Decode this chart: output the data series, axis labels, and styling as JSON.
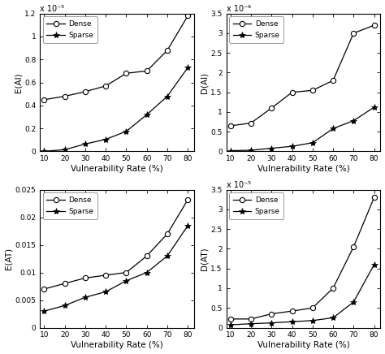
{
  "x": [
    10,
    20,
    30,
    40,
    50,
    60,
    70,
    80
  ],
  "top_left": {
    "ylabel": "E(Al)",
    "scale_label": "x 10⁻⁵",
    "scale_exp": -5,
    "ylim": [
      0,
      1.2e-05
    ],
    "yticks": [
      0,
      2e-06,
      4e-06,
      6e-06,
      8e-06,
      1e-05,
      1.2e-05
    ],
    "ytick_labels": [
      "0",
      "0.2",
      "0.4",
      "0.6",
      "0.8",
      "1",
      "1.2"
    ],
    "dense": [
      4.5e-06,
      4.8e-06,
      5.2e-06,
      5.7e-06,
      6.8e-06,
      7e-06,
      8.8e-06,
      1.18e-05
    ],
    "sparse": [
      2e-08,
      1.5e-07,
      6.5e-07,
      1.05e-06,
      1.75e-06,
      3.2e-06,
      4.8e-06,
      7.3e-06
    ]
  },
  "top_right": {
    "ylabel": "D(Al)",
    "scale_label": "x 10⁻⁶",
    "scale_exp": -6,
    "ylim": [
      0,
      3.5e-06
    ],
    "yticks": [
      0,
      5e-07,
      1e-06,
      1.5e-06,
      2e-06,
      2.5e-06,
      3e-06,
      3.5e-06
    ],
    "ytick_labels": [
      "0",
      "0.5",
      "1",
      "1.5",
      "2",
      "2.5",
      "3",
      "3.5"
    ],
    "dense": [
      6.5e-07,
      7.2e-07,
      1.1e-06,
      1.5e-06,
      1.55e-06,
      1.8e-06,
      3e-06,
      3.2e-06
    ],
    "sparse": [
      2e-08,
      3e-08,
      8e-08,
      1.3e-07,
      2.2e-07,
      5.8e-07,
      7.8e-07,
      1.12e-06
    ]
  },
  "bottom_left": {
    "ylabel": "E(AT)",
    "scale_label": null,
    "scale_exp": null,
    "ylim": [
      0,
      0.025
    ],
    "yticks": [
      0,
      0.005,
      0.01,
      0.015,
      0.02,
      0.025
    ],
    "ytick_labels": [
      "0",
      "0.005",
      "0.01",
      "0.015",
      "0.02",
      "0.025"
    ],
    "dense": [
      0.007,
      0.008,
      0.009,
      0.0095,
      0.01,
      0.013,
      0.017,
      0.0232
    ],
    "sparse": [
      0.003,
      0.004,
      0.0055,
      0.0065,
      0.0085,
      0.01,
      0.013,
      0.0185
    ]
  },
  "bottom_right": {
    "ylabel": "D(AT)",
    "scale_label": "x 10⁻⁵",
    "scale_exp": -5,
    "ylim": [
      0,
      3.5e-05
    ],
    "yticks": [
      0,
      5e-06,
      1e-05,
      1.5e-05,
      2e-05,
      2.5e-05,
      3e-05,
      3.5e-05
    ],
    "ytick_labels": [
      "0",
      "0.5",
      "1",
      "1.5",
      "2",
      "2.5",
      "3",
      "3.5"
    ],
    "dense": [
      2.2e-06,
      2.2e-06,
      3.5e-06,
      4.2e-06,
      5e-06,
      1e-05,
      2.05e-05,
      3.3e-05
    ],
    "sparse": [
      7e-07,
      1e-06,
      1.2e-06,
      1.5e-06,
      1.8e-06,
      2.5e-06,
      6.5e-06,
      1.6e-05
    ]
  },
  "xlabel": "Vulnerability Rate (%)",
  "legend_dense": "Dense",
  "legend_sparse": "Sparse",
  "line_color": "#000000",
  "bg_color": "#ffffff",
  "xticks": [
    10,
    20,
    30,
    40,
    50,
    60,
    70,
    80
  ]
}
